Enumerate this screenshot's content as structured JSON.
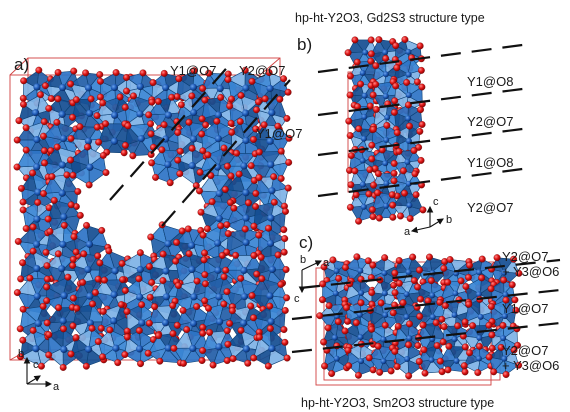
{
  "panels": {
    "a": {
      "label": "a)"
    },
    "b": {
      "label": "b)",
      "caption": "hp-ht-Y2O3, Gd2S3 structure type"
    },
    "c": {
      "label": "c)",
      "caption": "hp-ht-Y2O3, Sm2O3 structure type"
    }
  },
  "site_labels": {
    "a": [
      "Y1@O7",
      "Y2@O7",
      "Y1@O7"
    ],
    "b": [
      "Y1@O8",
      "Y2@O7",
      "Y1@O8",
      "Y2@O7"
    ],
    "c": [
      [
        "Y2@O7",
        "+ Y3@O6"
      ],
      [
        "Y1@O7"
      ],
      [
        "Y2@O7",
        "+ Y3@O6"
      ]
    ]
  },
  "axes": {
    "a": [
      "b",
      "c",
      "a"
    ],
    "b": [
      "c",
      "a",
      "b"
    ],
    "c": [
      "b",
      "a",
      "c"
    ]
  },
  "colors": {
    "polyhedron": "#2e74c6",
    "polyhedron_dark": "#154f92",
    "polyhedron_light": "#7fb3e6",
    "oxygen": "#e01515",
    "cell_edge": "#d24040",
    "yttrium": "#1b56b3"
  }
}
